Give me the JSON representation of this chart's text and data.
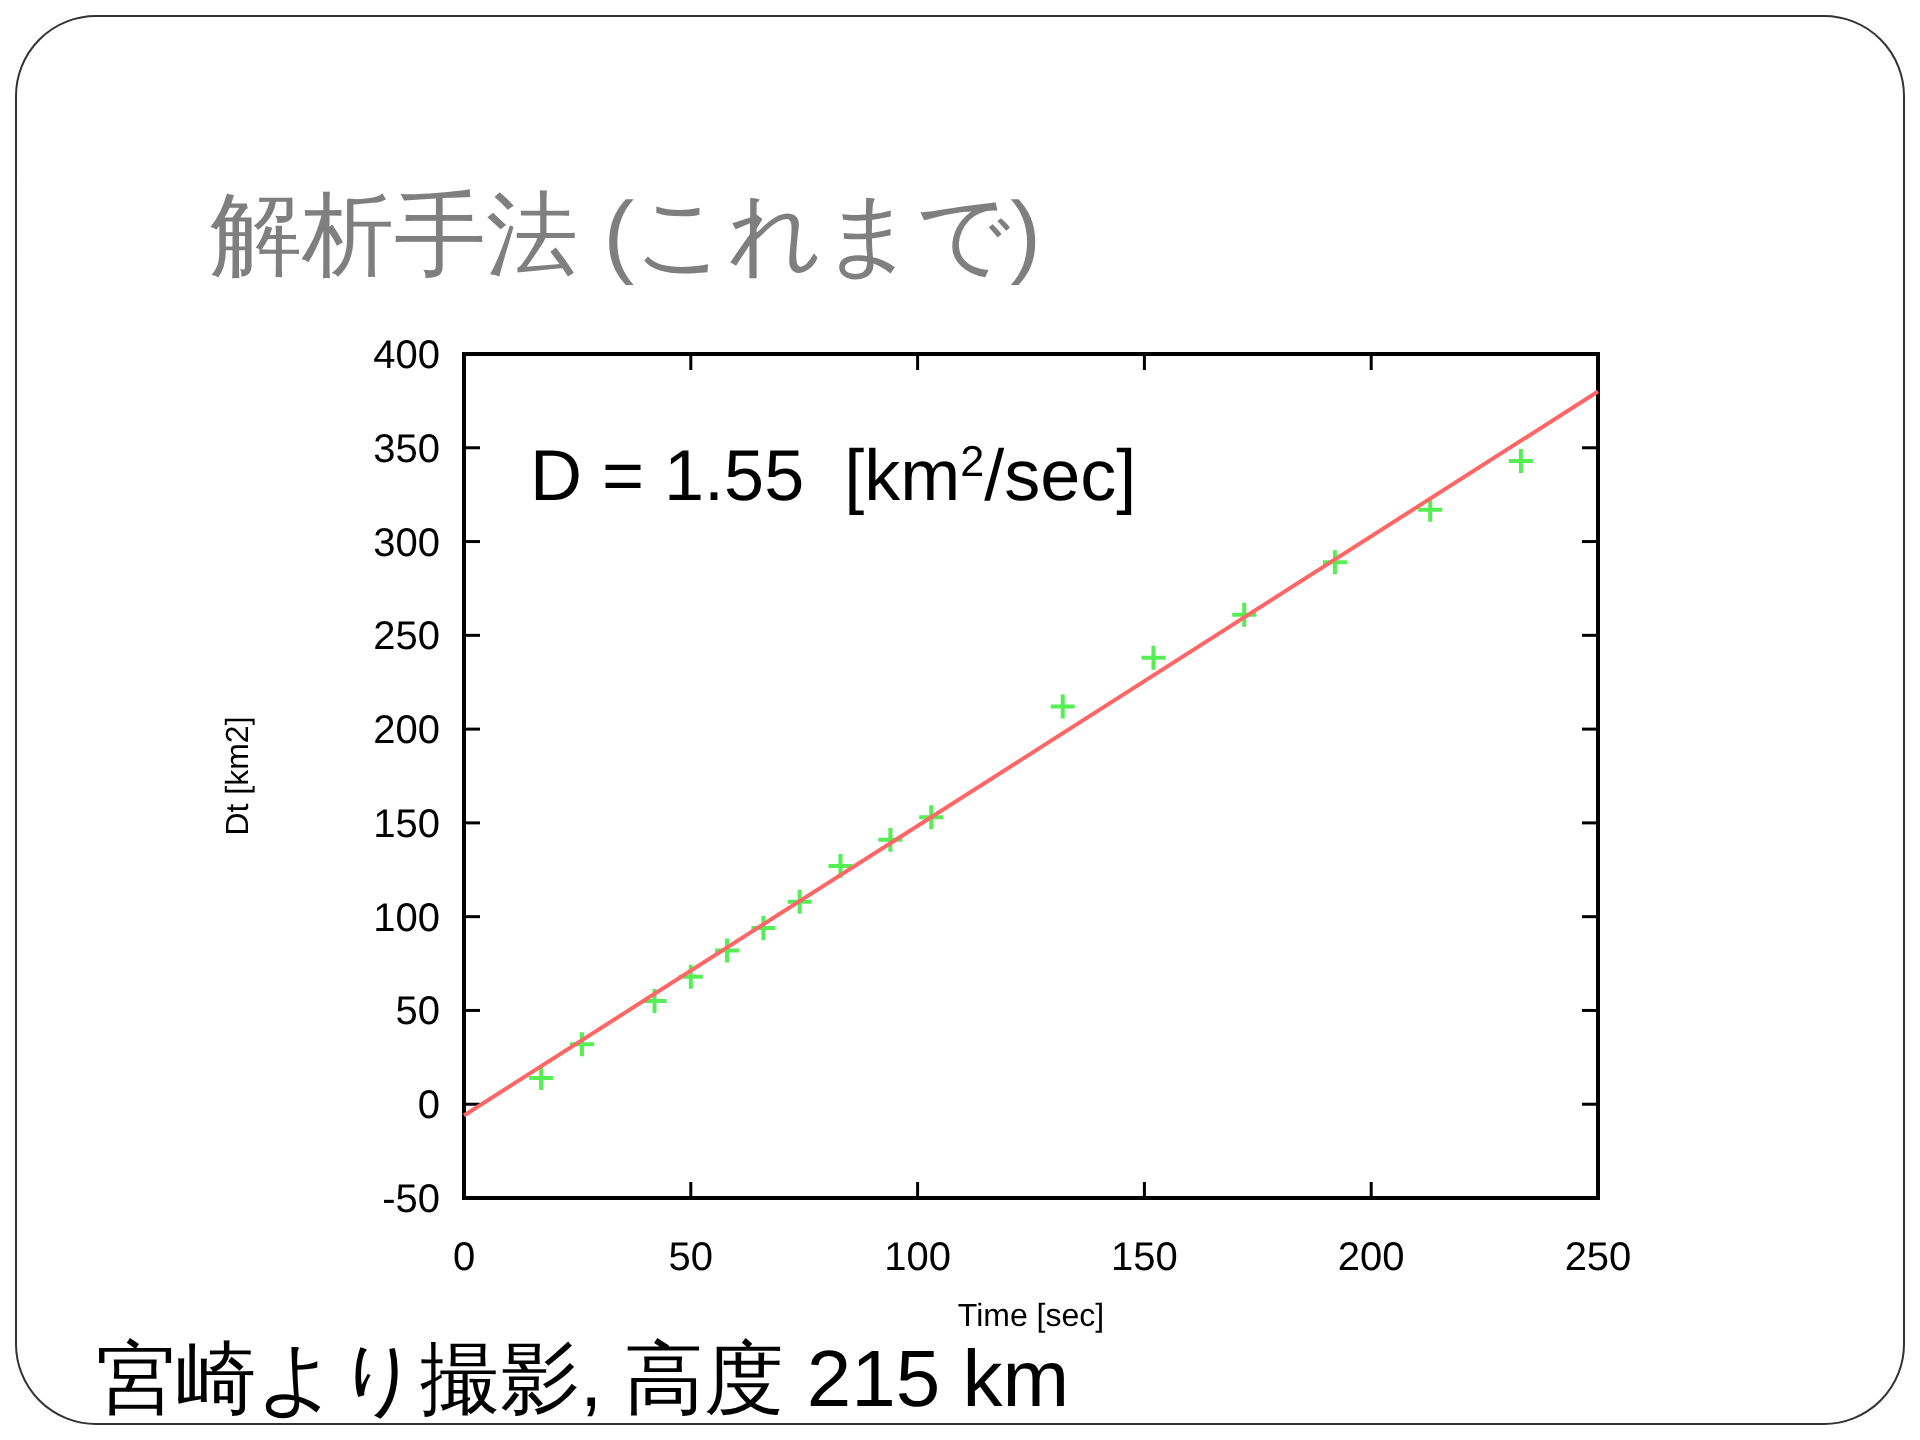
{
  "chart_data": {
    "type": "scatter",
    "title": "解析手法 (これまで)",
    "xlabel": "Time [sec]",
    "ylabel": "Dt [km2]",
    "annotations": [
      "D = 1.55  [km$^{2}$/sec]",
      "宮崎より撮影, 高度 215 km"
    ],
    "xlim": [
      0,
      250
    ],
    "ylim": [
      -50,
      400
    ],
    "xticks": [
      0,
      50,
      100,
      150,
      200,
      250
    ],
    "yticks": [
      -50,
      0,
      50,
      100,
      150,
      200,
      250,
      300,
      350,
      400
    ],
    "grid": false,
    "series": [
      {
        "color": "#55ee55",
        "marker": "cross",
        "x": [
          17,
          26,
          42,
          50,
          58,
          66,
          74,
          83,
          94,
          103,
          132,
          152,
          172,
          192,
          213,
          233
        ],
        "values": [
          14,
          32,
          55,
          68,
          82,
          94,
          108,
          127,
          141,
          153,
          212,
          238,
          261,
          289,
          317,
          343
        ]
      },
      {
        "type": "line",
        "color": "#ff6666",
        "x": [
          0,
          250
        ],
        "values": [
          -6,
          380
        ]
      }
    ]
  }
}
